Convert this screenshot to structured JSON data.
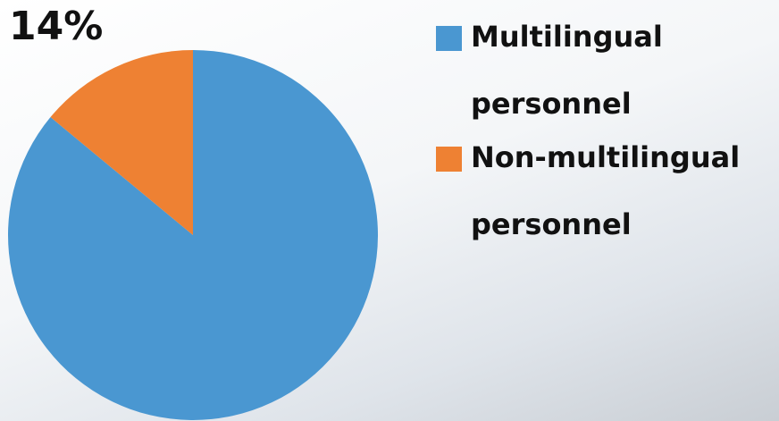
{
  "chart_data": {
    "type": "pie",
    "categories": [
      "Multilingual personnel",
      "Non-multilingual personnel"
    ],
    "values": [
      86,
      14
    ],
    "value_labels": [
      null,
      "14%"
    ],
    "colors": [
      "#4a97d1",
      "#ee8133"
    ],
    "start_angle": 0,
    "direction": "clockwise",
    "legend": "right"
  }
}
